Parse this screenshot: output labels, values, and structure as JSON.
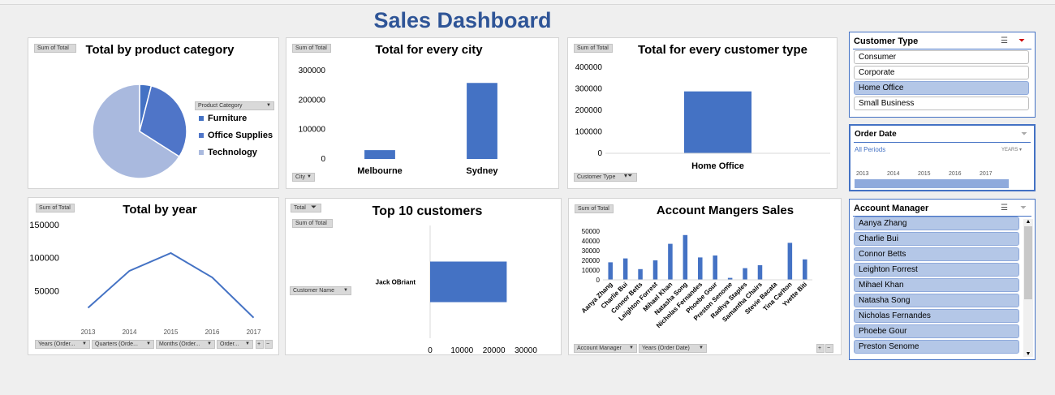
{
  "dashboard": {
    "title": "Sales Dashboard"
  },
  "panels": {
    "category": {
      "title": "Total by product category",
      "field_button": "Sum of Total",
      "legend_filter": "Product Category",
      "legend": [
        "Furniture",
        "Office Supplies",
        "Technology"
      ]
    },
    "city": {
      "title": "Total for every city",
      "field_button": "Sum of Total",
      "axis_button": "City"
    },
    "customer_type": {
      "title": "Total for every customer type",
      "field_button": "Sum of Total",
      "axis_button": "Customer Type"
    },
    "year": {
      "title": "Total by year",
      "field_button": "Sum of Total",
      "axis_buttons": [
        "Years (Order...",
        "Quarters (Orde...",
        "Months (Order...",
        "Order..."
      ],
      "plus": "+",
      "minus": "−"
    },
    "top10": {
      "title": "Top 10 customers",
      "filter_button": "Total",
      "field_button": "Sum of Total",
      "axis_button": "Customer Name"
    },
    "managers": {
      "title": "Account Mangers Sales",
      "field_button": "Sum of Total",
      "axis_buttons": [
        "Account Manager",
        "Years (Order Date)"
      ],
      "plus": "+",
      "minus": "−"
    }
  },
  "slicers": {
    "customer_type": {
      "title": "Customer Type",
      "items": [
        {
          "label": "Consumer",
          "selected": false
        },
        {
          "label": "Corporate",
          "selected": false
        },
        {
          "label": "Home Office",
          "selected": true
        },
        {
          "label": "Small Business",
          "selected": false
        }
      ]
    },
    "order_date": {
      "title": "Order Date",
      "period_label": "All Periods",
      "level": "YEARS",
      "years": [
        "2013",
        "2014",
        "2015",
        "2016",
        "2017"
      ]
    },
    "account_manager": {
      "title": "Account Manager",
      "items": [
        "Aanya Zhang",
        "Charlie Bui",
        "Connor Betts",
        "Leighton Forrest",
        "Mihael Khan",
        "Natasha Song",
        "Nicholas Fernandes",
        "Phoebe Gour",
        "Preston Senome"
      ]
    }
  },
  "colors": {
    "accent": "#4472c4",
    "title": "#2f5597",
    "pie_dark": "#4472c4",
    "pie_mid": "#4f75c8",
    "pie_light": "#a9b9de",
    "slicer_selected": "#b4c7e7"
  },
  "chart_data": [
    {
      "type": "pie",
      "title": "Total by product category",
      "categories": [
        "Furniture",
        "Office Supplies",
        "Technology"
      ],
      "values": [
        4,
        30,
        66
      ],
      "legend_position": "right"
    },
    {
      "type": "bar",
      "title": "Total for every city",
      "categories": [
        "Melbourne",
        "Sydney"
      ],
      "values": [
        30000,
        258000
      ],
      "ylim": [
        0,
        300000
      ],
      "yticks": [
        "0",
        "100000",
        "200000",
        "300000"
      ]
    },
    {
      "type": "bar",
      "title": "Total for every customer type",
      "categories": [
        "Home Office"
      ],
      "values": [
        288000
      ],
      "ylim": [
        0,
        400000
      ],
      "yticks": [
        "0",
        "100000",
        "200000",
        "300000",
        "400000"
      ]
    },
    {
      "type": "line",
      "title": "Total by year",
      "categories": [
        "2013",
        "2014",
        "2015",
        "2016",
        "2017"
      ],
      "values": [
        24000,
        80000,
        107000,
        70000,
        9000
      ],
      "ylim": [
        0,
        150000
      ],
      "yticks": [
        "50000",
        "100000",
        "150000"
      ]
    },
    {
      "type": "bar",
      "orientation": "horizontal",
      "title": "Top 10 customers",
      "categories": [
        "Jack OBriant"
      ],
      "values": [
        24000
      ],
      "xlim": [
        0,
        30000
      ],
      "xticks": [
        "0",
        "10000",
        "20000",
        "30000"
      ]
    },
    {
      "type": "bar",
      "title": "Account Mangers Sales",
      "categories": [
        "Aanya Zhang",
        "Charlie Bui",
        "Connor Betts",
        "Leighton Forrest",
        "Mihael Khan",
        "Natasha Song",
        "Nicholas Fernandes",
        "Phoebe Gour",
        "Preston Senome",
        "Radhya Staples",
        "Samantha Chairs",
        "Stevie Bacata",
        "Tina Carlton",
        "Yvette Biti"
      ],
      "values": [
        18000,
        22000,
        11000,
        20000,
        37000,
        46000,
        23000,
        25000,
        2000,
        12000,
        15000,
        0,
        38000,
        21000
      ],
      "ylim": [
        0,
        50000
      ],
      "yticks": [
        "0",
        "10000",
        "20000",
        "30000",
        "40000",
        "50000"
      ]
    }
  ]
}
